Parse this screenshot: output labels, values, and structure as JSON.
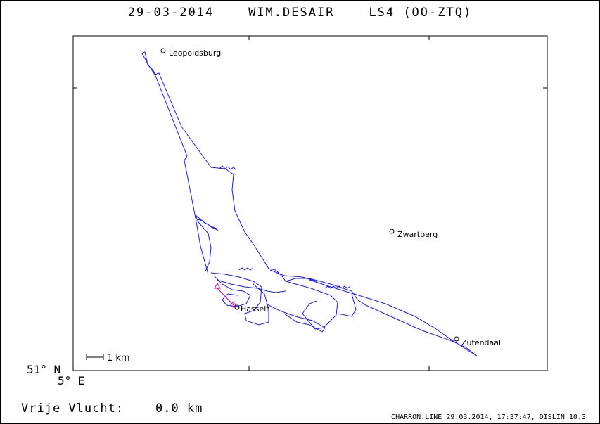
{
  "header": {
    "title": "29-03-2014    WIM.DESAIR    LS4 (OO-ZTQ)"
  },
  "map": {
    "corner_lat": "51° N",
    "corner_lon": "5° E",
    "scale_label": "1 km",
    "track_color": "#1a1aff",
    "task_color": "#d400aa",
    "places": [
      {
        "name": "Leopoldsburg"
      },
      {
        "name": "Zwartberg"
      },
      {
        "name": "Hasselt"
      },
      {
        "name": "Zutendaal"
      }
    ]
  },
  "footer": {
    "distance": "Vrije Vlucht:    0.0 km",
    "credits": "CHARRON.LINE 29.03.2014, 17:37:47, DISLIN 10.3"
  }
}
